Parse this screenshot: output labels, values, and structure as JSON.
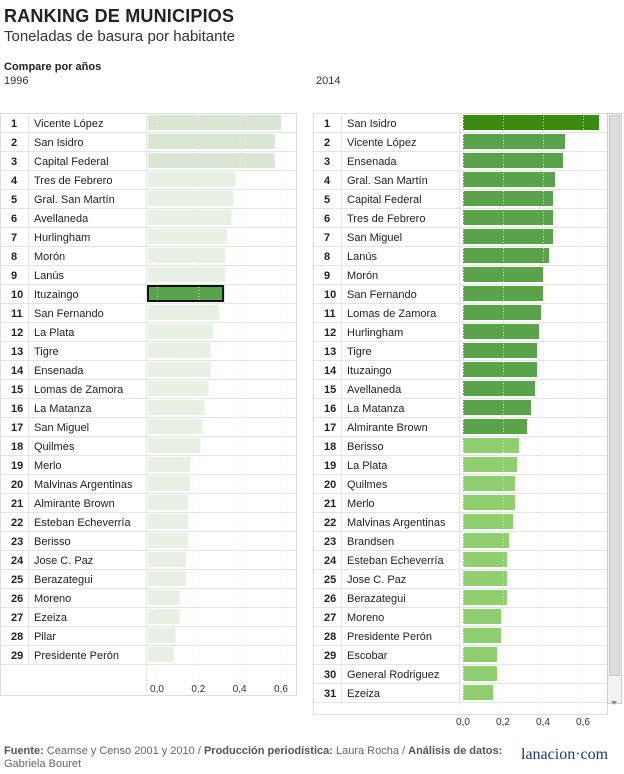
{
  "title": "RANKING DE MUNICIPIOS",
  "subtitle": "Toneladas de basura por habitante",
  "compare_label": "Compare por años",
  "footer": {
    "fuente_label": "Fuente:",
    "fuente_text": " Ceamse y Censo 2001 y 2010 / ",
    "produccion_label": "Producción periodística:",
    "produccion_text": " Laura Rocha / ",
    "analisis_label": "Análisis de datos:",
    "analisis_text": " Gabriela Bouret"
  },
  "logo": {
    "part1": "lanacion",
    "dot": "·",
    "part2": "com"
  },
  "colors": {
    "green_dark": "#3a8a10",
    "green_mid": "#5aa34a",
    "green_light": "#8fcf6f",
    "pale": "#d9e6d4",
    "pale_light": "#e8f0e4"
  },
  "chart_data": [
    {
      "type": "bar",
      "year": "1996",
      "highlighted": "Ituzaingo",
      "xlim": [
        0,
        0.7
      ],
      "ticks": [
        "0,0",
        "0,2",
        "0,4",
        "0,6"
      ],
      "rows": [
        {
          "rank": "1",
          "name": "Vicente López",
          "value": 0.6
        },
        {
          "rank": "2",
          "name": "San Isidro",
          "value": 0.57
        },
        {
          "rank": "3",
          "name": "Capital Federal",
          "value": 0.57
        },
        {
          "rank": "4",
          "name": "Tres de Febrero",
          "value": 0.38
        },
        {
          "rank": "5",
          "name": "Gral. San Martín",
          "value": 0.37
        },
        {
          "rank": "6",
          "name": "Avellaneda",
          "value": 0.36
        },
        {
          "rank": "7",
          "name": "Hurlingham",
          "value": 0.34
        },
        {
          "rank": "8",
          "name": "Morón",
          "value": 0.33
        },
        {
          "rank": "9",
          "name": "Lanús",
          "value": 0.33
        },
        {
          "rank": "10",
          "name": "Ituzaingo",
          "value": 0.32
        },
        {
          "rank": "11",
          "name": "San Fernando",
          "value": 0.3
        },
        {
          "rank": "12",
          "name": "La Plata",
          "value": 0.27
        },
        {
          "rank": "13",
          "name": "Tigre",
          "value": 0.26
        },
        {
          "rank": "14",
          "name": "Ensenada",
          "value": 0.26
        },
        {
          "rank": "15",
          "name": "Lomas de Zamora",
          "value": 0.25
        },
        {
          "rank": "16",
          "name": "La Matanza",
          "value": 0.23
        },
        {
          "rank": "17",
          "name": "San Miguel",
          "value": 0.22
        },
        {
          "rank": "18",
          "name": "Quilmes",
          "value": 0.21
        },
        {
          "rank": "19",
          "name": "Merlo",
          "value": 0.16
        },
        {
          "rank": "20",
          "name": "Malvinas Argentinas",
          "value": 0.16
        },
        {
          "rank": "21",
          "name": "Almirante Brown",
          "value": 0.15
        },
        {
          "rank": "22",
          "name": "Esteban Echeverría",
          "value": 0.15
        },
        {
          "rank": "23",
          "name": "Berisso",
          "value": 0.15
        },
        {
          "rank": "24",
          "name": "Jose C. Paz",
          "value": 0.14
        },
        {
          "rank": "25",
          "name": "Berazategui",
          "value": 0.14
        },
        {
          "rank": "26",
          "name": "Moreno",
          "value": 0.11
        },
        {
          "rank": "27",
          "name": "Ezeiza",
          "value": 0.11
        },
        {
          "rank": "28",
          "name": "Pilar",
          "value": 0.09
        },
        {
          "rank": "29",
          "name": "Presidente Perón",
          "value": 0.08
        }
      ]
    },
    {
      "type": "bar",
      "year": "2014",
      "xlim": [
        0,
        0.7
      ],
      "ticks": [
        "0,0",
        "0,2",
        "0,4",
        "0,6"
      ],
      "rows": [
        {
          "rank": "1",
          "name": "San Isidro",
          "value": 0.68
        },
        {
          "rank": "2",
          "name": "Vicente López",
          "value": 0.51
        },
        {
          "rank": "3",
          "name": "Ensenada",
          "value": 0.5
        },
        {
          "rank": "4",
          "name": "Gral. San Martín",
          "value": 0.46
        },
        {
          "rank": "5",
          "name": "Capital Federal",
          "value": 0.45
        },
        {
          "rank": "6",
          "name": "Tres de Febrero",
          "value": 0.45
        },
        {
          "rank": "7",
          "name": "San Miguel",
          "value": 0.45
        },
        {
          "rank": "8",
          "name": "Lanús",
          "value": 0.43
        },
        {
          "rank": "9",
          "name": "Morón",
          "value": 0.4
        },
        {
          "rank": "10",
          "name": "San Fernando",
          "value": 0.4
        },
        {
          "rank": "11",
          "name": "Lomas de Zamora",
          "value": 0.39
        },
        {
          "rank": "12",
          "name": "Hurlingham",
          "value": 0.38
        },
        {
          "rank": "13",
          "name": "Tigre",
          "value": 0.37
        },
        {
          "rank": "14",
          "name": "Ituzaingo",
          "value": 0.37
        },
        {
          "rank": "15",
          "name": "Avellaneda",
          "value": 0.36
        },
        {
          "rank": "16",
          "name": "La Matanza",
          "value": 0.34
        },
        {
          "rank": "17",
          "name": "Almirante Brown",
          "value": 0.32
        },
        {
          "rank": "18",
          "name": "Berisso",
          "value": 0.28
        },
        {
          "rank": "19",
          "name": "La Plata",
          "value": 0.27
        },
        {
          "rank": "20",
          "name": "Quilmes",
          "value": 0.26
        },
        {
          "rank": "21",
          "name": "Merlo",
          "value": 0.26
        },
        {
          "rank": "22",
          "name": "Malvinas Argentinas",
          "value": 0.25
        },
        {
          "rank": "23",
          "name": "Brandsen",
          "value": 0.23
        },
        {
          "rank": "24",
          "name": "Esteban Echeverría",
          "value": 0.22
        },
        {
          "rank": "25",
          "name": "Jose C. Paz",
          "value": 0.22
        },
        {
          "rank": "26",
          "name": "Berazategui",
          "value": 0.22
        },
        {
          "rank": "27",
          "name": "Moreno",
          "value": 0.19
        },
        {
          "rank": "28",
          "name": "Presidente Perón",
          "value": 0.19
        },
        {
          "rank": "29",
          "name": "Escobar",
          "value": 0.17
        },
        {
          "rank": "30",
          "name": "General Rodriguez",
          "value": 0.17
        },
        {
          "rank": "31",
          "name": "Ezeiza",
          "value": 0.15
        }
      ]
    }
  ]
}
